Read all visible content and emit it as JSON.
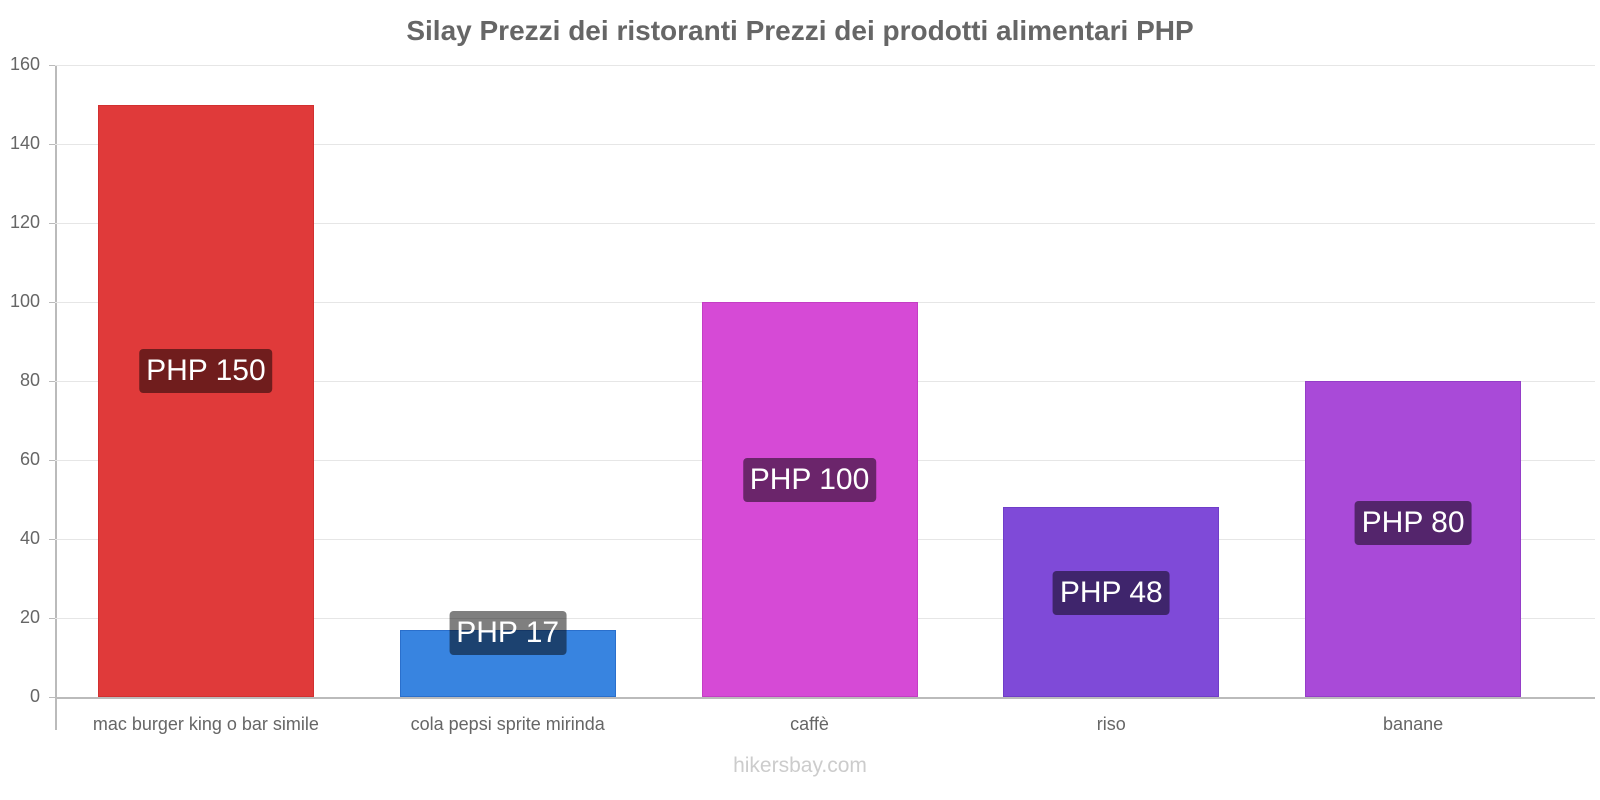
{
  "chart_data": {
    "type": "bar",
    "title": "Silay Prezzi dei ristoranti Prezzi dei prodotti alimentari PHP",
    "xlabel": "",
    "ylabel": "",
    "ylim": [
      0,
      160
    ],
    "yticks": [
      0,
      20,
      40,
      60,
      80,
      100,
      120,
      140,
      160
    ],
    "grid": true,
    "legend": null,
    "categories": [
      "mac burger king o bar simile",
      "cola pepsi sprite mirinda",
      "caffè",
      "riso",
      "banane"
    ],
    "values": [
      150,
      17,
      100,
      48,
      80
    ],
    "labels": [
      "PHP 150",
      "PHP 17",
      "PHP 100",
      "PHP 48",
      "PHP 80"
    ],
    "colors": [
      "#e03a3a",
      "#3884e0",
      "#d64ad6",
      "#7f4ad8",
      "#a94ad8"
    ],
    "bar_borders": [
      "#d23030",
      "#2a6fcc",
      "#c43ec4",
      "#6f3ec8",
      "#953ec8"
    ]
  },
  "watermark": "hikersbay.com"
}
